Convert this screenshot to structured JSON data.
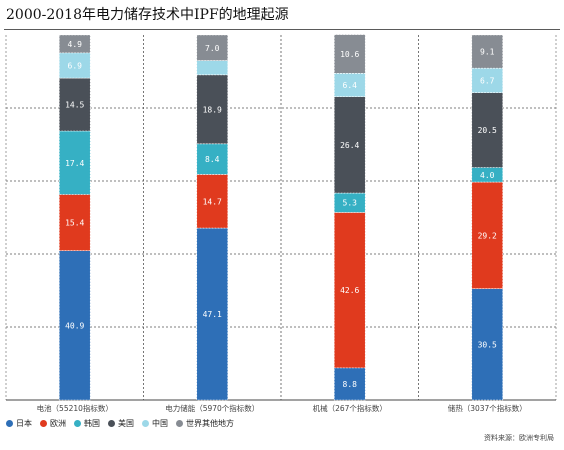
{
  "chart_data": {
    "type": "bar",
    "stacked": true,
    "title": "2000-2018年电力储存技术中IPF的地理起源",
    "categories": [
      "电池（55210指标数）",
      "电力储能（5970个指标数）",
      "机械（267个指标数）",
      "储热（3037个指标数）"
    ],
    "series": [
      {
        "name": "日本",
        "color": "#2e6fb7",
        "values": [
          40.9,
          47.1,
          8.8,
          30.5
        ]
      },
      {
        "name": "欧洲",
        "color": "#e03a1e",
        "values": [
          15.4,
          14.7,
          42.6,
          29.2
        ]
      },
      {
        "name": "韩国",
        "color": "#36b0c4",
        "values": [
          17.4,
          8.4,
          5.3,
          4.0
        ]
      },
      {
        "name": "美国",
        "color": "#4a5058",
        "values": [
          14.5,
          18.9,
          26.4,
          20.5
        ]
      },
      {
        "name": "中国",
        "color": "#9dd8e8",
        "values": [
          6.9,
          3.9,
          6.4,
          6.7
        ]
      },
      {
        "name": "世界其他地方",
        "color": "#878c93",
        "values": [
          4.9,
          7.0,
          10.6,
          9.1
        ]
      }
    ],
    "data_labels": [
      [
        "40.9",
        "47.1",
        "8.8",
        "30.5"
      ],
      [
        "15.4",
        "14.7",
        "42.6",
        "29.2"
      ],
      [
        "17.4",
        "8.4",
        "5.3",
        "4.0"
      ],
      [
        "14.5",
        "18.9",
        "26.4",
        "20.5"
      ],
      [
        "6.9",
        "",
        "6.4",
        "6.7"
      ],
      [
        "4.9",
        "7.0",
        "10.6",
        "9.1"
      ]
    ],
    "ylim": [
      0,
      100
    ],
    "grid": true,
    "legend_position": "bottom-left"
  },
  "source": "资料来源：欧洲专利局"
}
